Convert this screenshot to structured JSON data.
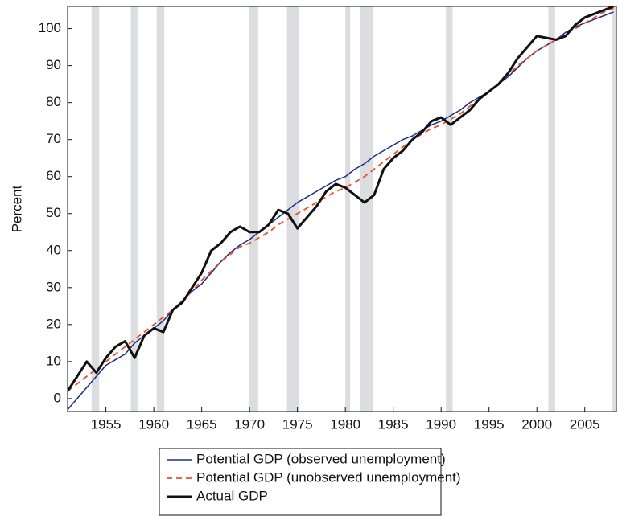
{
  "chart_data": {
    "type": "line",
    "ylabel": "Percent",
    "x": [
      1951,
      1952,
      1953,
      1954,
      1955,
      1956,
      1957,
      1958,
      1959,
      1960,
      1961,
      1962,
      1963,
      1964,
      1965,
      1966,
      1967,
      1968,
      1969,
      1970,
      1971,
      1972,
      1973,
      1974,
      1975,
      1976,
      1977,
      1978,
      1979,
      1980,
      1981,
      1982,
      1983,
      1984,
      1985,
      1986,
      1987,
      1988,
      1989,
      1990,
      1991,
      1992,
      1993,
      1994,
      1995,
      1996,
      1997,
      1998,
      1999,
      2000,
      2001,
      2002,
      2003,
      2004,
      2005,
      2006,
      2007,
      2008
    ],
    "series": [
      {
        "name": "Potential GDP (observed unemployment)",
        "color": "#1f2a8c",
        "width": 1.5,
        "dash": false,
        "values": [
          -3,
          0,
          3,
          6,
          9,
          10.5,
          12,
          15,
          17,
          19,
          21,
          24,
          26.5,
          29,
          31,
          34,
          37,
          39.5,
          41.5,
          43,
          45,
          47,
          49,
          51,
          53,
          54.5,
          56,
          57.5,
          59,
          60,
          62,
          63.5,
          65.5,
          67,
          68.5,
          70,
          71,
          72.5,
          74,
          75,
          76.5,
          78,
          80,
          81.5,
          83,
          85,
          87,
          89.5,
          92,
          94,
          95.5,
          97,
          99,
          100.5,
          101.5,
          102.5,
          103.5,
          104.5
        ]
      },
      {
        "name": "Potential GDP (unobserved unemployment)",
        "color": "#e8502a",
        "width": 1.8,
        "dash": true,
        "values": [
          2,
          4,
          6,
          8,
          10,
          12,
          14,
          16,
          18,
          20,
          22,
          24,
          26.5,
          29,
          32,
          34.5,
          37,
          39,
          41,
          42,
          43.5,
          45,
          47,
          48.5,
          50,
          51.5,
          53,
          54.5,
          56,
          57,
          58.5,
          60,
          62,
          64,
          66,
          68,
          70,
          71.5,
          73,
          74,
          75.5,
          77,
          79,
          81,
          83,
          85,
          87.5,
          90,
          92,
          94,
          95.5,
          97,
          98.5,
          100,
          101.5,
          103,
          104.5,
          105.5
        ]
      },
      {
        "name": "Actual GDP",
        "color": "#111111",
        "width": 3,
        "dash": false,
        "values": [
          2,
          6,
          10,
          7,
          11,
          14,
          15.5,
          11,
          17,
          19,
          18,
          24,
          26,
          30,
          34,
          40,
          42,
          45,
          46.5,
          45,
          45,
          47,
          51,
          50,
          46,
          49,
          52,
          56,
          58,
          57,
          55,
          53,
          55,
          62,
          65,
          67,
          70,
          72,
          75,
          76,
          74,
          76,
          78,
          81,
          83,
          85,
          88,
          92,
          95,
          98,
          97.5,
          97,
          98,
          101,
          103,
          104,
          105,
          106
        ]
      }
    ],
    "recessions": [
      [
        1953.5,
        1954.3
      ],
      [
        1957.6,
        1958.3
      ],
      [
        1960.3,
        1961.1
      ],
      [
        1969.9,
        1970.9
      ],
      [
        1973.9,
        1975.2
      ],
      [
        1980.0,
        1980.5
      ],
      [
        1981.5,
        1982.9
      ],
      [
        1990.5,
        1991.2
      ],
      [
        2001.2,
        2001.9
      ],
      [
        2007.9,
        2008.3
      ]
    ],
    "recession_color": "#dcdde0",
    "xlim": [
      1951,
      2008.3
    ],
    "ylim": [
      -3.5,
      106
    ],
    "xticks": [
      1955,
      1960,
      1965,
      1970,
      1975,
      1980,
      1985,
      1990,
      1995,
      2000,
      2005
    ],
    "yticks": [
      0,
      10,
      20,
      30,
      40,
      50,
      60,
      70,
      80,
      90,
      100
    ],
    "legend": "bottom"
  }
}
